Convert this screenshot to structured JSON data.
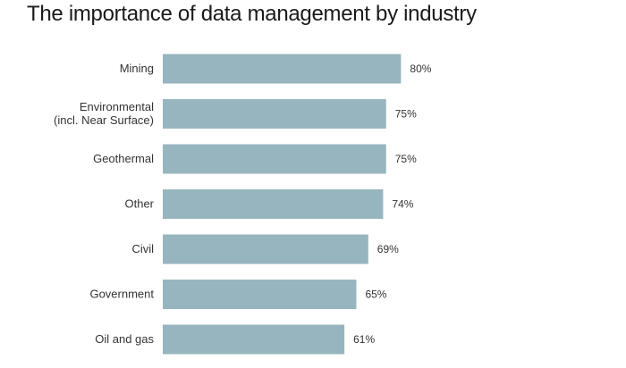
{
  "chart_data": {
    "type": "bar",
    "orientation": "horizontal",
    "title": "The importance of data management by industry",
    "categories": [
      [
        "Mining"
      ],
      [
        "Environmental",
        "(incl. Near Surface)"
      ],
      [
        "Geothermal"
      ],
      [
        "Other"
      ],
      [
        "Civil"
      ],
      [
        "Government"
      ],
      [
        "Oil and gas"
      ]
    ],
    "values": [
      80,
      75,
      75,
      74,
      69,
      65,
      61
    ],
    "value_labels": [
      "80%",
      "75%",
      "75%",
      "74%",
      "69%",
      "65%",
      "61%"
    ],
    "xlim": [
      0,
      100
    ],
    "bar_color": "#97b5bf",
    "grid": false,
    "legend": "none"
  }
}
